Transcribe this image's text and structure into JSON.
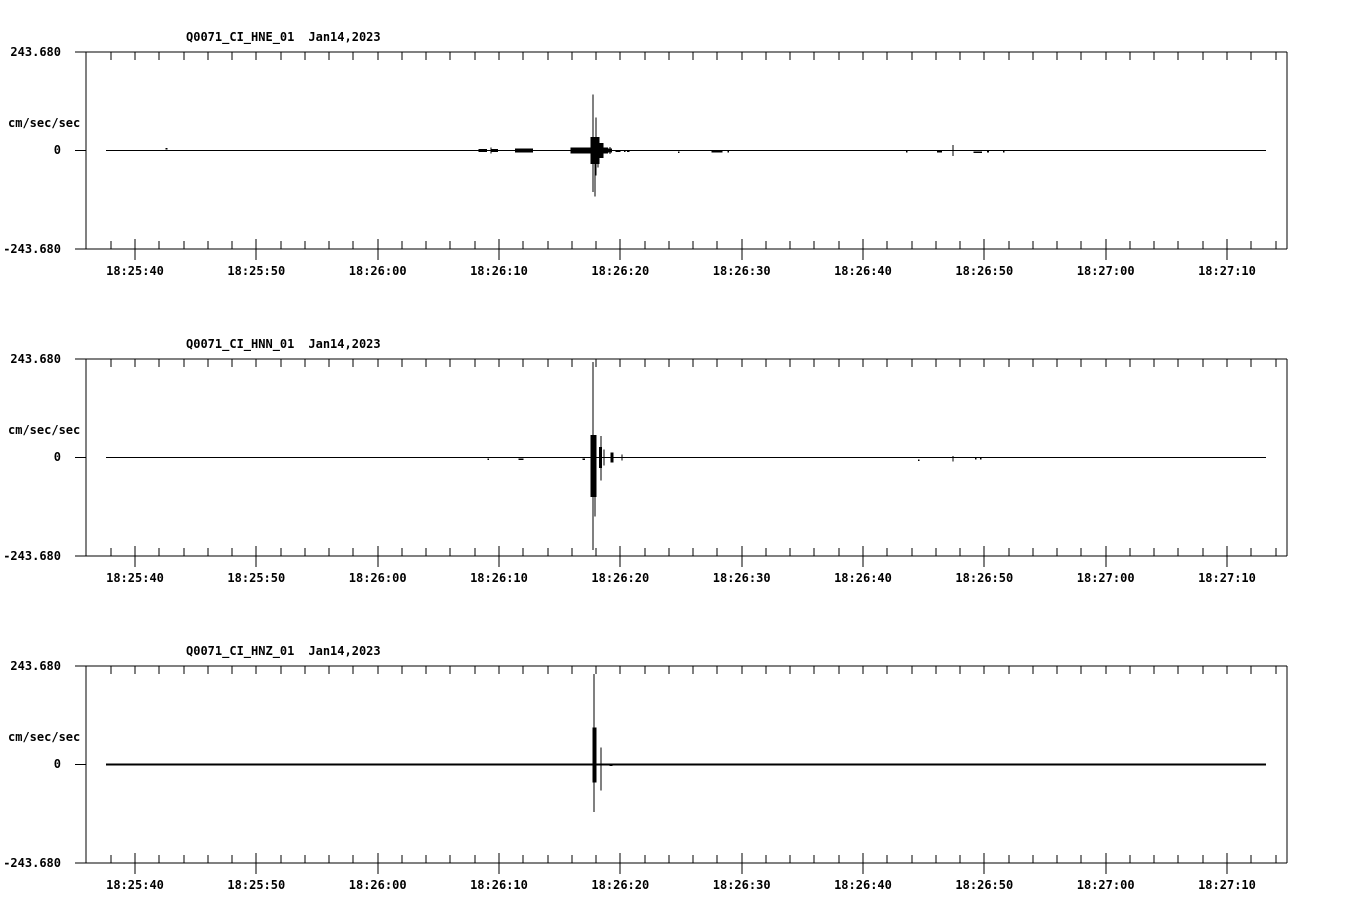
{
  "page": {
    "background": "#ffffff",
    "ink": "#000000"
  },
  "y_axis": {
    "max_label": "243.680",
    "zero_label": "0",
    "min_label": "-243.680",
    "units_label": "cm/sec/sec",
    "ylim": [
      -243.68,
      243.68
    ]
  },
  "x_axis": {
    "tick_labels": [
      "18:25:40",
      "18:25:50",
      "18:26:00",
      "18:26:10",
      "18:26:20",
      "18:26:30",
      "18:26:40",
      "18:26:50",
      "18:27:00",
      "18:27:10"
    ],
    "tick_seconds": [
      0,
      10,
      20,
      30,
      40,
      50,
      60,
      70,
      80,
      90
    ],
    "major_step_seconds": 10,
    "minor_step_seconds": 2,
    "window_seconds": [
      -4.0,
      95.0
    ]
  },
  "chart_data": [
    {
      "type": "line",
      "channel": "HNE",
      "title": "Q0071_CI_HNE_01",
      "date": "Jan14,2023",
      "units": "cm/sec/sec",
      "ylim": [
        -243.68,
        243.68
      ],
      "event_time": "18:26:18",
      "peak_value": 139,
      "trace": {
        "start_s": -2.4,
        "end_s": 93.2,
        "baseline": 0,
        "stroke_px": 1
      },
      "features": [
        {
          "type": "dot",
          "t": 2.6,
          "v": 4
        },
        {
          "type": "fuzz",
          "t": 28.3,
          "t2": 29.0,
          "up": 4,
          "down": 4
        },
        {
          "type": "spike",
          "t": 29.3,
          "up": 7,
          "down": 7
        },
        {
          "type": "fuzz",
          "t": 29.4,
          "t2": 29.9,
          "up": 4,
          "down": 4
        },
        {
          "type": "fuzz",
          "t": 31.3,
          "t2": 32.8,
          "up": 5,
          "down": 5
        },
        {
          "type": "fuzz",
          "t": 35.9,
          "t2": 37.55,
          "up": 8,
          "down": 8
        },
        {
          "type": "blob",
          "t": 37.55,
          "t2": 38.3,
          "up": 33,
          "down": 33
        },
        {
          "type": "spike",
          "t": 37.78,
          "up": 139,
          "down": 103
        },
        {
          "type": "spike",
          "t": 37.88,
          "up": 30,
          "down": 114
        },
        {
          "type": "spike",
          "t": 38.02,
          "up": 82,
          "down": 62
        },
        {
          "type": "spike",
          "t": 38.17,
          "up": 28,
          "down": 42
        },
        {
          "type": "fuzz",
          "t": 38.28,
          "t2": 38.62,
          "up": 18,
          "down": 18
        },
        {
          "type": "fuzz",
          "t": 38.62,
          "t2": 39.0,
          "up": 8,
          "down": 8
        },
        {
          "type": "blob",
          "t": 39.0,
          "t2": 39.3,
          "up": 5,
          "down": 5
        },
        {
          "type": "spike",
          "t": 39.12,
          "up": 9,
          "down": 9
        },
        {
          "type": "dash",
          "t": 39.6,
          "t2": 40.0,
          "v": -2
        },
        {
          "type": "dot",
          "t": 40.35,
          "v": -2
        },
        {
          "type": "dash",
          "t": 40.55,
          "t2": 40.75,
          "v": -2
        },
        {
          "type": "dot",
          "t": 44.8,
          "v": -4
        },
        {
          "type": "dash",
          "t": 47.5,
          "t2": 48.4,
          "v": -3
        },
        {
          "type": "dot",
          "t": 48.9,
          "v": -3
        },
        {
          "type": "dot",
          "t": 63.6,
          "v": -3
        },
        {
          "type": "dash",
          "t": 66.1,
          "t2": 66.5,
          "v": -3
        },
        {
          "type": "spike",
          "t": 67.4,
          "up": 13,
          "down": 13
        },
        {
          "type": "dash",
          "t": 69.1,
          "t2": 69.8,
          "v": -4
        },
        {
          "type": "dot",
          "t": 70.3,
          "v": -3
        },
        {
          "type": "dot",
          "t": 71.6,
          "v": -3
        }
      ]
    },
    {
      "type": "line",
      "channel": "HNN",
      "title": "Q0071_CI_HNN_01",
      "date": "Jan14,2023",
      "units": "cm/sec/sec",
      "ylim": [
        -243.68,
        243.68
      ],
      "event_time": "18:26:18",
      "peak_value": 236,
      "trace": {
        "start_s": -2.4,
        "end_s": 93.2,
        "baseline": 0,
        "stroke_px": 1
      },
      "features": [
        {
          "type": "dot",
          "t": 29.1,
          "v": -4
        },
        {
          "type": "dash",
          "t": 31.6,
          "t2": 32.0,
          "v": -4
        },
        {
          "type": "dash",
          "t": 36.9,
          "t2": 37.1,
          "v": -4
        },
        {
          "type": "blob",
          "t": 37.55,
          "t2": 38.05,
          "up": 56,
          "down": 98
        },
        {
          "type": "spike",
          "t": 37.73,
          "up": 236,
          "down": 229
        },
        {
          "type": "spike",
          "t": 37.9,
          "up": 40,
          "down": 146
        },
        {
          "type": "blob",
          "t": 38.25,
          "t2": 38.5,
          "up": 26,
          "down": 26
        },
        {
          "type": "spike",
          "t": 38.38,
          "up": 53,
          "down": 57
        },
        {
          "type": "spike",
          "t": 38.62,
          "up": 20,
          "down": 20
        },
        {
          "type": "blob",
          "t": 39.2,
          "t2": 39.45,
          "up": 12,
          "down": 12
        },
        {
          "type": "spike",
          "t": 40.1,
          "up": 8,
          "down": 8
        },
        {
          "type": "dot",
          "t": 64.6,
          "v": -7
        },
        {
          "type": "spike",
          "t": 67.4,
          "up": 4,
          "down": 10
        },
        {
          "type": "dot",
          "t": 69.3,
          "v": -3
        },
        {
          "type": "dot",
          "t": 69.7,
          "v": -3
        }
      ]
    },
    {
      "type": "line",
      "channel": "HNZ",
      "title": "Q0071_CI_HNZ_01",
      "date": "Jan14,2023",
      "units": "cm/sec/sec",
      "ylim": [
        -243.68,
        243.68
      ],
      "event_time": "18:26:18",
      "peak_value": 224,
      "trace": {
        "start_s": -2.4,
        "end_s": 93.2,
        "baseline": 0,
        "stroke_px": 2.4
      },
      "features": [
        {
          "type": "blob",
          "t": 37.72,
          "t2": 38.05,
          "up": 92,
          "down": 45
        },
        {
          "type": "spike",
          "t": 37.82,
          "up": 224,
          "down": 117
        },
        {
          "type": "spike",
          "t": 38.4,
          "up": 42,
          "down": 64
        },
        {
          "type": "dash",
          "t": 39.1,
          "t2": 39.35,
          "v": -2
        }
      ]
    }
  ]
}
